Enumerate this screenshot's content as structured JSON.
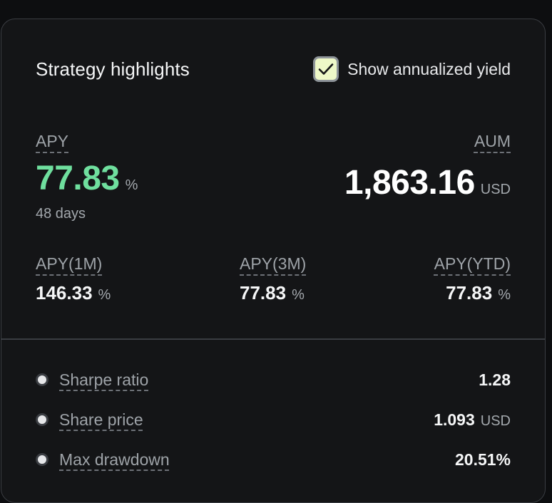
{
  "header": {
    "title": "Strategy highlights",
    "toggle_label": "Show annualized yield",
    "toggle_checked": true
  },
  "apy": {
    "label": "APY",
    "value": "77.83",
    "unit": "%",
    "period": "48 days"
  },
  "aum": {
    "label": "AUM",
    "value": "1,863.16",
    "unit": "USD"
  },
  "sub_apys": [
    {
      "label": "APY(1M)",
      "value": "146.33",
      "unit": "%"
    },
    {
      "label": "APY(3M)",
      "value": "77.83",
      "unit": "%"
    },
    {
      "label": "APY(YTD)",
      "value": "77.83",
      "unit": "%"
    }
  ],
  "metrics": [
    {
      "label": "Sharpe ratio",
      "value": "1.28",
      "unit": ""
    },
    {
      "label": "Share price",
      "value": "1.093",
      "unit": "USD"
    },
    {
      "label": "Max drawdown",
      "value": "20.51%",
      "unit": ""
    }
  ],
  "colors": {
    "background": "#141517",
    "accent_green": "#6fdf9e",
    "checkbox_fill": "#eef8c8",
    "border": "#3a3d42"
  },
  "icons": {
    "checkbox": "check-icon",
    "bullet": "bullet-dot-icon"
  }
}
